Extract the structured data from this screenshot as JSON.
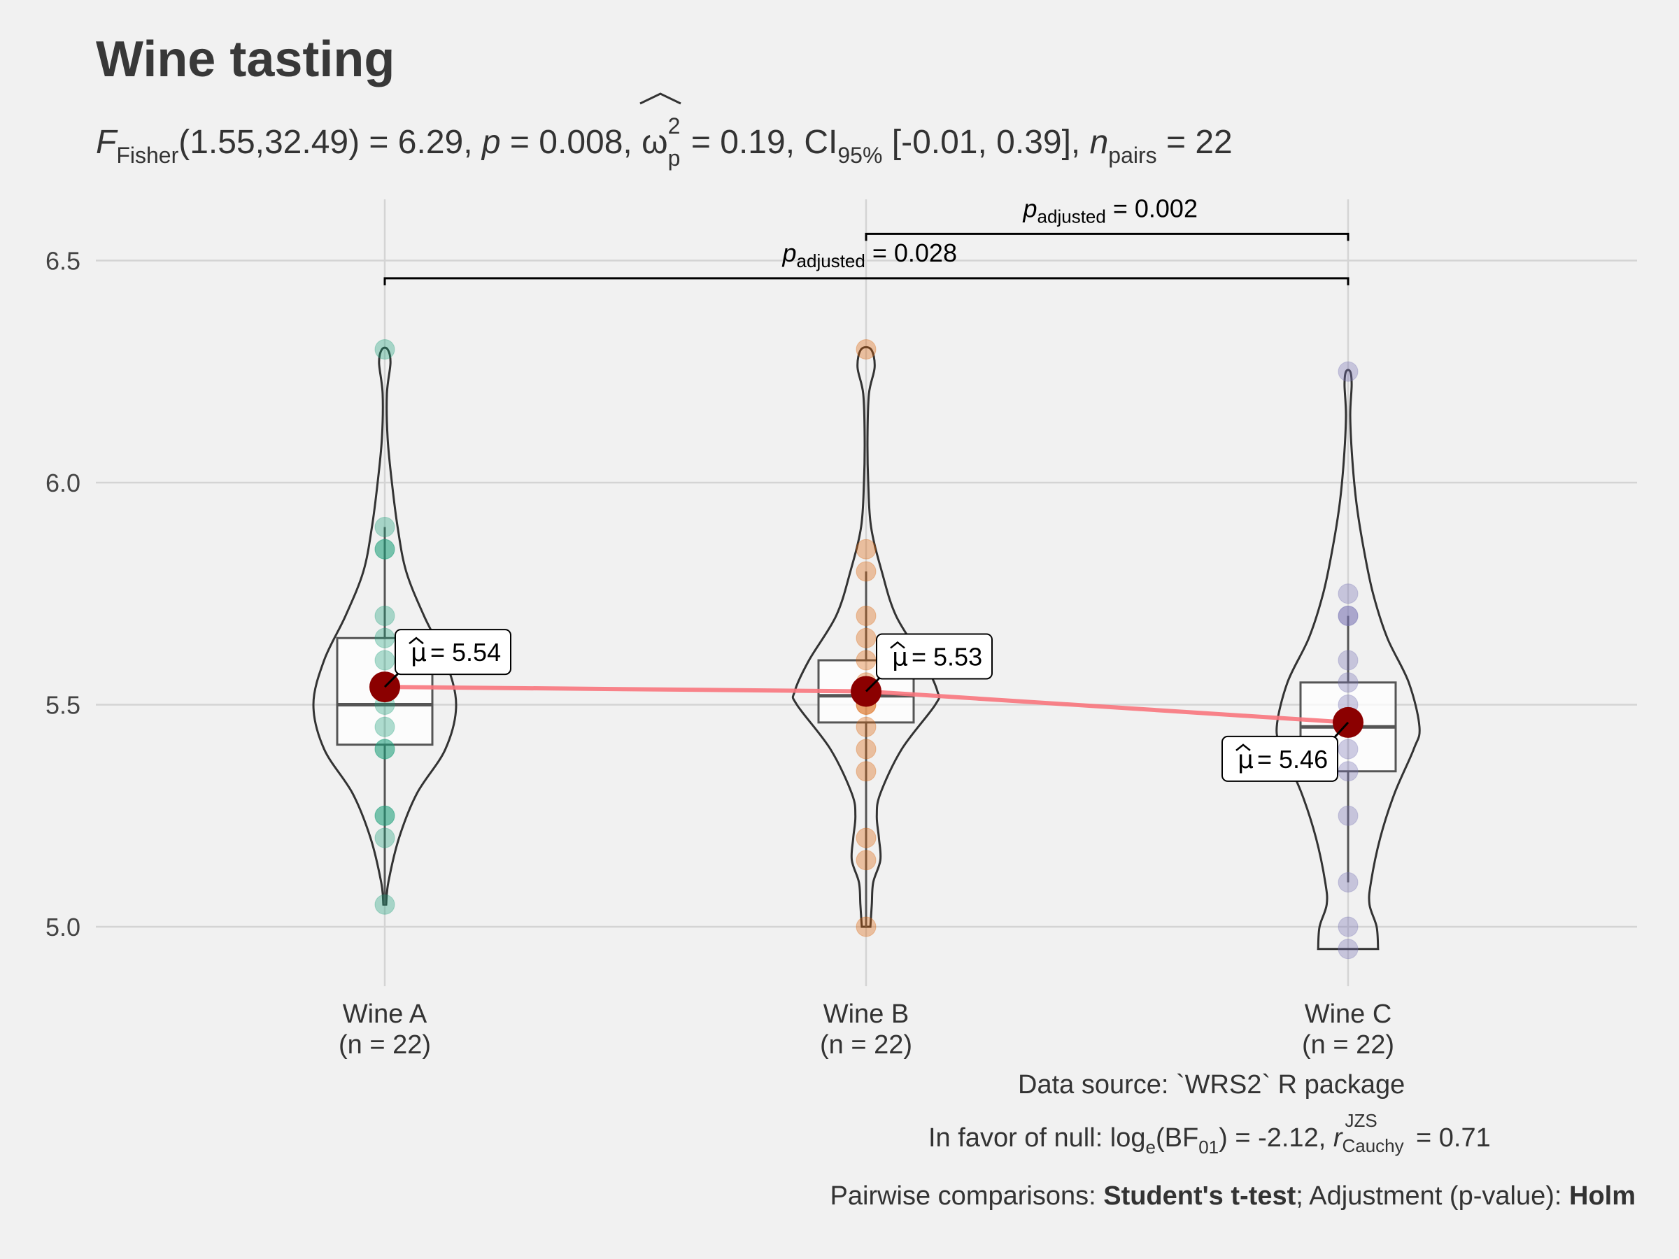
{
  "title": "Wine tasting",
  "subtitle": {
    "f_symbol": "F",
    "f_sub": "Fisher",
    "f_args": "(1.55,32.49) = 6.29, ",
    "p_symbol": "p",
    "p_text": " = 0.008, ",
    "omega_symbol": "ω",
    "omega_sup": "2",
    "omega_sub": "p",
    "omega_text": " = 0.19, CI",
    "ci_sub": "95%",
    "ci_text": " [-0.01, 0.39], ",
    "n_symbol": "n",
    "n_sub": "pairs",
    "n_text": " = 22"
  },
  "chart_data": {
    "type": "violin",
    "y_ticks": [
      "5.0",
      "5.5",
      "6.0",
      "6.5"
    ],
    "ylim": [
      4.9,
      6.65
    ],
    "groups": [
      {
        "label": "Wine A",
        "n_label": "(n = 22)",
        "color": "#1b9e77",
        "mean": 5.54,
        "mean_label": "= 5.54",
        "box": {
          "q1": 5.41,
          "median": 5.5,
          "q3": 5.65,
          "lower": 5.05,
          "upper": 5.9
        },
        "points": [
          6.3,
          5.9,
          5.85,
          5.85,
          5.7,
          5.65,
          5.6,
          5.55,
          5.5,
          5.45,
          5.4,
          5.4,
          5.25,
          5.25,
          5.2,
          5.05
        ],
        "violin": [
          [
            5.05,
            0.02
          ],
          [
            5.1,
            0.05
          ],
          [
            5.2,
            0.2
          ],
          [
            5.3,
            0.45
          ],
          [
            5.4,
            0.85
          ],
          [
            5.5,
            1.0
          ],
          [
            5.6,
            0.85
          ],
          [
            5.7,
            0.55
          ],
          [
            5.8,
            0.3
          ],
          [
            5.9,
            0.18
          ],
          [
            6.0,
            0.1
          ],
          [
            6.1,
            0.04
          ],
          [
            6.2,
            0.03
          ],
          [
            6.27,
            0.08
          ],
          [
            6.3,
            0.04
          ]
        ]
      },
      {
        "label": "Wine B",
        "n_label": "(n = 22)",
        "color": "#d95f02",
        "mean": 5.53,
        "mean_label": "= 5.53",
        "box": {
          "q1": 5.46,
          "median": 5.52,
          "q3": 5.6,
          "lower": 5.0,
          "upper": 5.8
        },
        "points": [
          6.3,
          5.85,
          5.8,
          5.7,
          5.65,
          5.6,
          5.55,
          5.5,
          5.5,
          5.45,
          5.4,
          5.35,
          5.2,
          5.15,
          5.0
        ],
        "violin": [
          [
            5.0,
            0.06
          ],
          [
            5.05,
            0.08
          ],
          [
            5.1,
            0.1
          ],
          [
            5.15,
            0.2
          ],
          [
            5.2,
            0.18
          ],
          [
            5.25,
            0.15
          ],
          [
            5.3,
            0.2
          ],
          [
            5.4,
            0.5
          ],
          [
            5.5,
            0.97
          ],
          [
            5.53,
            1.0
          ],
          [
            5.6,
            0.8
          ],
          [
            5.7,
            0.42
          ],
          [
            5.8,
            0.22
          ],
          [
            5.9,
            0.07
          ],
          [
            6.0,
            0.03
          ],
          [
            6.1,
            0.02
          ],
          [
            6.2,
            0.04
          ],
          [
            6.26,
            0.12
          ],
          [
            6.3,
            0.07
          ]
        ]
      },
      {
        "label": "Wine C",
        "n_label": "(n = 22)",
        "color": "#7570b3",
        "mean": 5.46,
        "mean_label": "= 5.46",
        "box": {
          "q1": 5.35,
          "median": 5.45,
          "q3": 5.55,
          "lower": 5.1,
          "upper": 5.7
        },
        "points": [
          6.25,
          5.75,
          5.7,
          5.7,
          5.6,
          5.55,
          5.5,
          5.45,
          5.4,
          5.35,
          5.25,
          5.1,
          5.0,
          4.95
        ],
        "violin": [
          [
            4.95,
            0.42
          ],
          [
            5.0,
            0.4
          ],
          [
            5.05,
            0.3
          ],
          [
            5.1,
            0.32
          ],
          [
            5.2,
            0.45
          ],
          [
            5.3,
            0.65
          ],
          [
            5.4,
            0.92
          ],
          [
            5.45,
            1.0
          ],
          [
            5.55,
            0.85
          ],
          [
            5.65,
            0.55
          ],
          [
            5.75,
            0.35
          ],
          [
            5.85,
            0.22
          ],
          [
            5.95,
            0.12
          ],
          [
            6.05,
            0.06
          ],
          [
            6.15,
            0.03
          ],
          [
            6.22,
            0.05
          ],
          [
            6.25,
            0.03
          ]
        ]
      }
    ],
    "mean_symbol": "μ",
    "comparisons": [
      {
        "from": 1,
        "to": 2,
        "y": 6.56,
        "p_symbol": "p",
        "p_sub": "adjusted",
        "p_text": " = 0.002"
      },
      {
        "from": 0,
        "to": 2,
        "y": 6.46,
        "p_symbol": "p",
        "p_sub": "adjusted",
        "p_text": " = 0.028"
      }
    ],
    "colors": {
      "mean_point": "#8b0000",
      "mean_line": "#f8767d",
      "grid": "#d4d4d4",
      "outline": "#333333"
    }
  },
  "captions": {
    "data_source": "Data source: `WRS2` R package",
    "bf_prefix": "In favor of null: log",
    "bf_sub_e": "e",
    "bf_mid": "(BF",
    "bf_sub_01": "01",
    "bf_after": ") = -2.12, ",
    "r_symbol": "r",
    "r_sup": "JZS",
    "r_sub": "Cauchy",
    "r_text": " = 0.71",
    "pairwise_prefix": "Pairwise comparisons: ",
    "pairwise_test": "Student's t-test",
    "pairwise_mid": "; Adjustment (p-value): ",
    "pairwise_adj": "Holm"
  }
}
